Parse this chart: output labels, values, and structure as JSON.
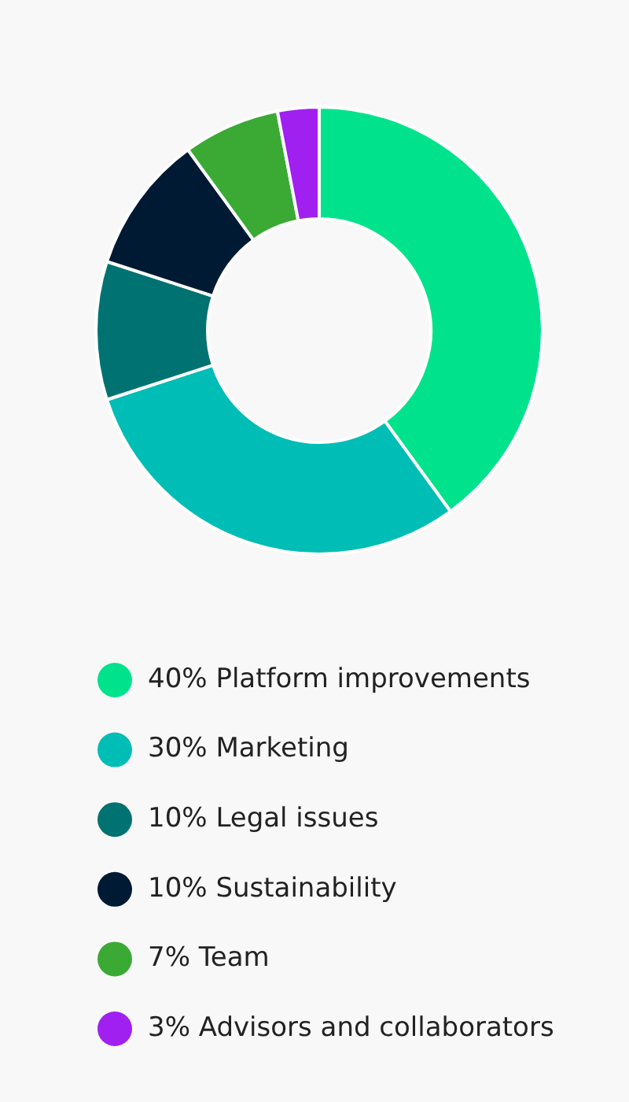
{
  "chart_data": {
    "type": "donut",
    "categories": [
      "Platform improvements",
      "Marketing",
      "Legal issues",
      "Sustainability",
      "Team",
      "Advisors and collaborators"
    ],
    "values": [
      40,
      30,
      10,
      10,
      7,
      3
    ],
    "value_labels": [
      "40%",
      "30%",
      "10%",
      "10%",
      "7%",
      "3%"
    ],
    "colors": [
      "#00e38c",
      "#00bdb5",
      "#007272",
      "#001a33",
      "#3aaa35",
      "#a020f0"
    ],
    "legend": "bottom"
  }
}
